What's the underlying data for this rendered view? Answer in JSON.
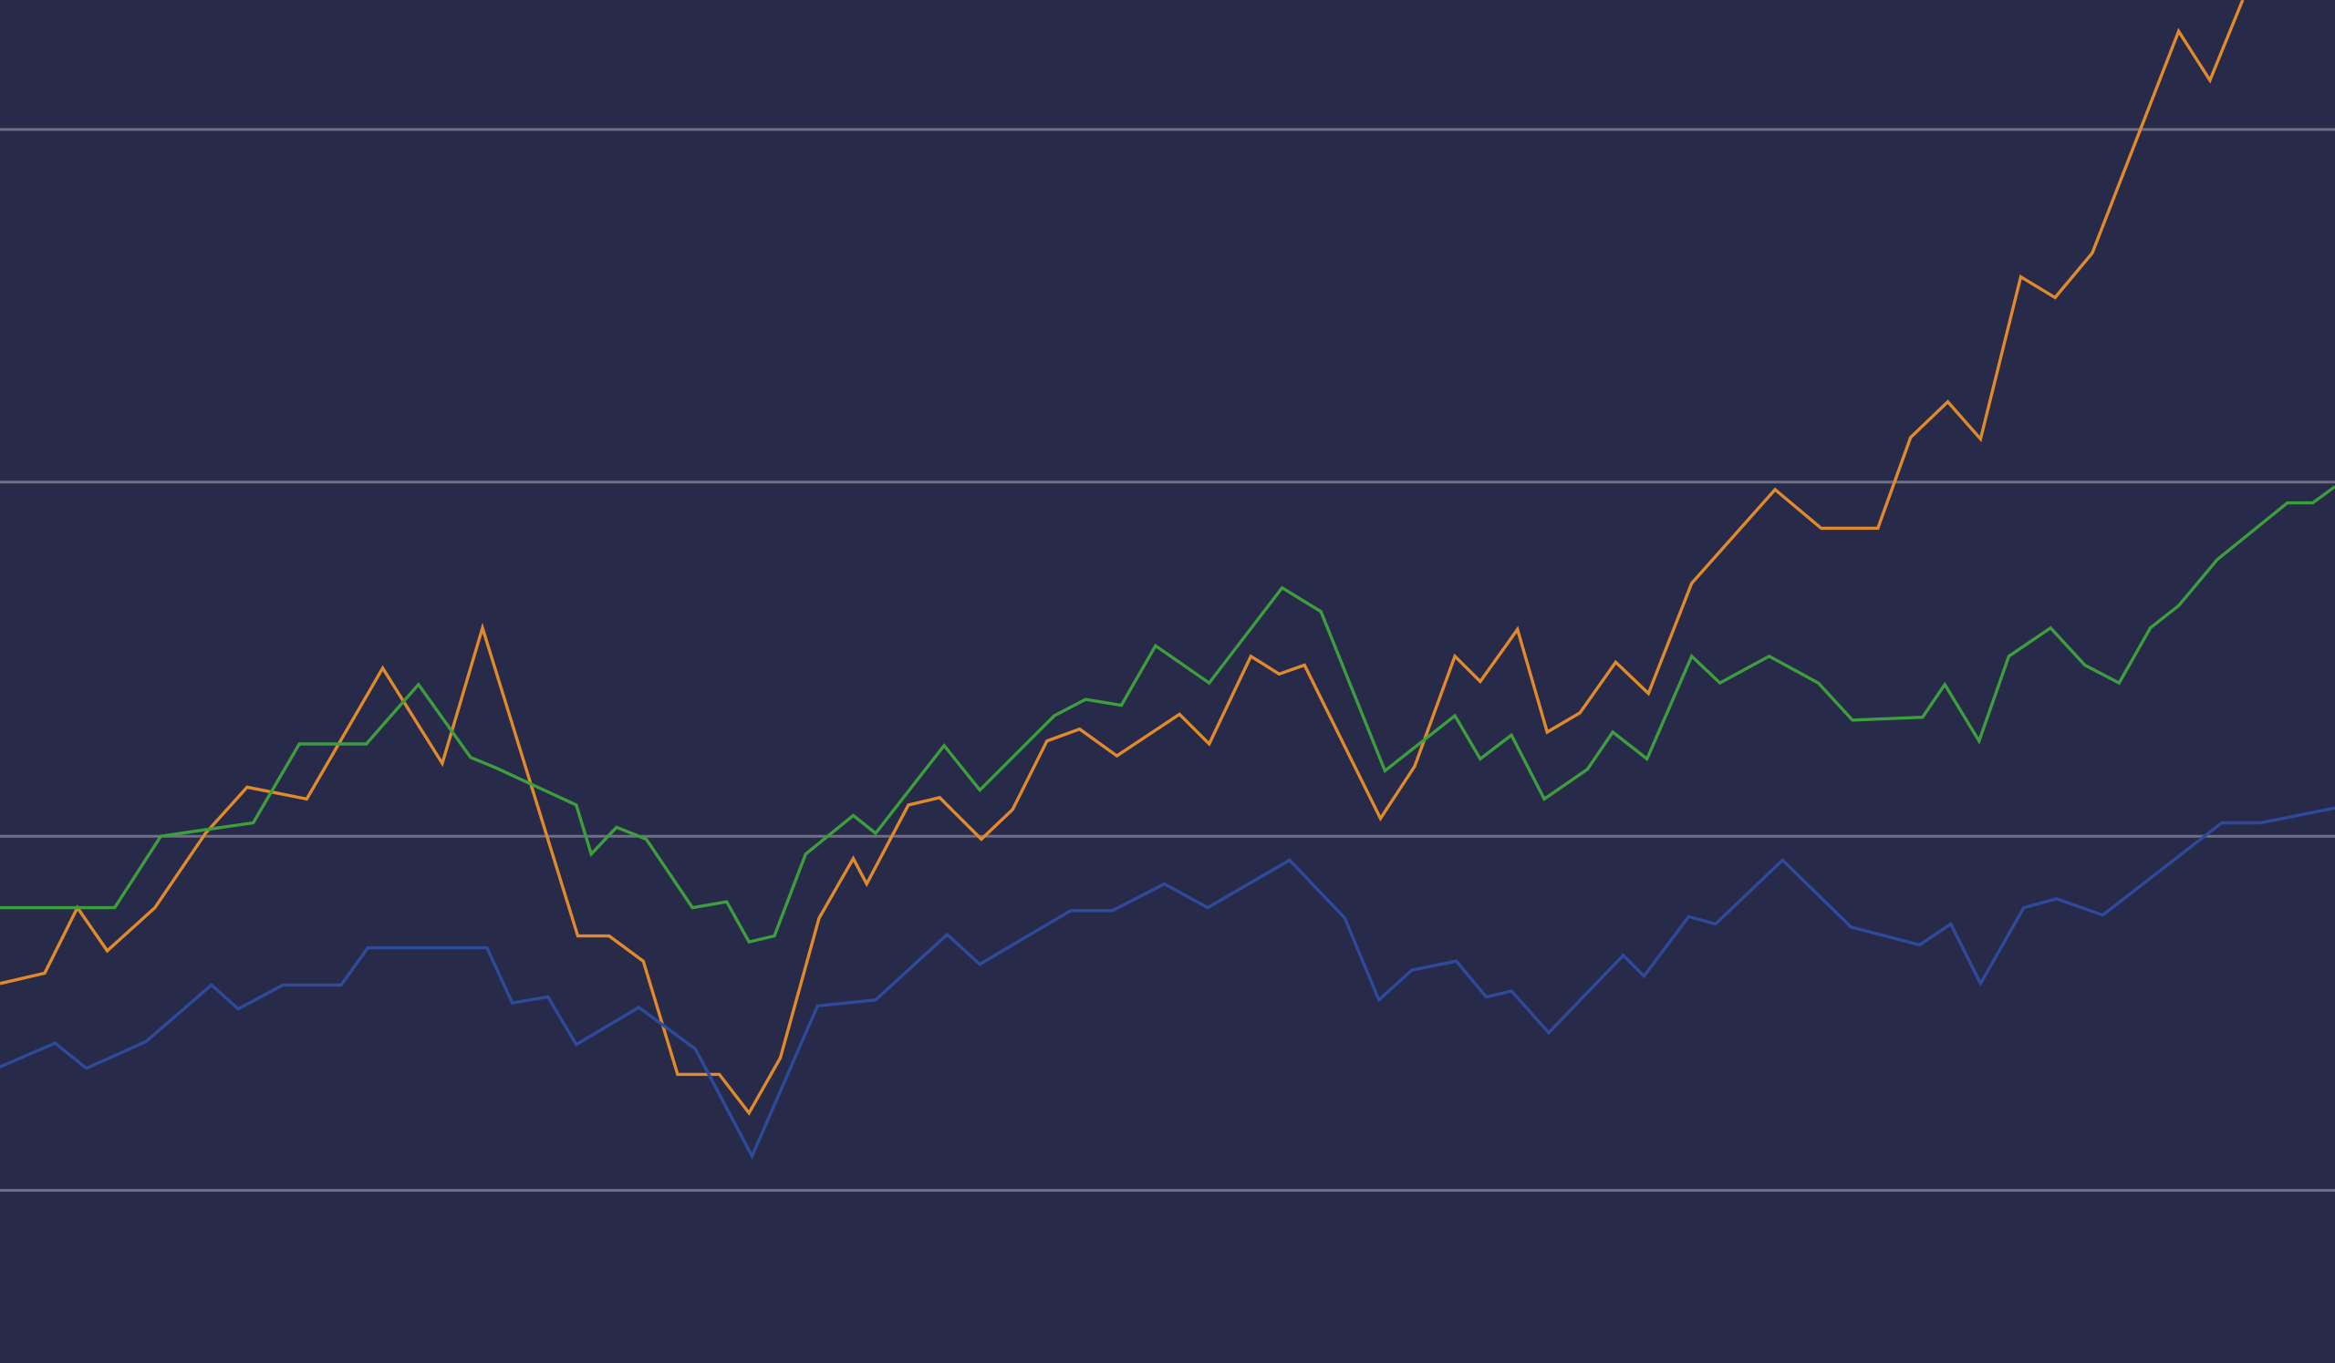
{
  "chart_data": {
    "type": "line",
    "xlim": [
      0,
      1568
    ],
    "ylim": [
      -116,
      800
    ],
    "yticks": [
      0,
      238,
      476,
      713
    ],
    "grid": true,
    "background": "#282a4a",
    "grid_color": "#6e6f85",
    "series": [
      {
        "color": "#e08a2a",
        "x": [
          0,
          30,
          52,
          72,
          104,
          138,
          166,
          206,
          257,
          297,
          324,
          388,
          409,
          432,
          455,
          483,
          503,
          524,
          550,
          573,
          582,
          610,
          631,
          659,
          680,
          703,
          725,
          750,
          792,
          812,
          840,
          859,
          876,
          927,
          950,
          977,
          994,
          1019,
          1039,
          1061,
          1085,
          1107,
          1136,
          1192,
          1223,
          1261,
          1283,
          1308,
          1330,
          1357,
          1380,
          1405,
          1463,
          1484,
          1506
        ],
        "values": [
          139,
          146,
          190,
          161,
          190,
          240,
          271,
          263,
          351,
          287,
          378,
          171,
          171,
          154,
          78,
          78,
          52,
          89,
          183,
          223,
          206,
          259,
          264,
          236,
          256,
          302,
          310,
          292,
          320,
          300,
          359,
          347,
          353,
          250,
          285,
          359,
          342,
          377,
          308,
          321,
          355,
          334,
          408,
          471,
          445,
          445,
          506,
          530,
          505,
          614,
          600,
          630,
          779,
          746,
          800
        ]
      },
      {
        "color": "#3c9e3c",
        "x": [
          0,
          77,
          108,
          170,
          201,
          246,
          281,
          316,
          333,
          387,
          397,
          414,
          434,
          465,
          488,
          503,
          520,
          541,
          573,
          588,
          634,
          658,
          708,
          729,
          753,
          776,
          812,
          861,
          887,
          930,
          977,
          994,
          1015,
          1037,
          1066,
          1083,
          1106,
          1136,
          1155,
          1188,
          1221,
          1244,
          1291,
          1306,
          1329,
          1349,
          1377,
          1400,
          1423,
          1444,
          1463,
          1489,
          1536,
          1553,
          1568
        ],
        "values": [
          190,
          190,
          238,
          247,
          300,
          300,
          340,
          291,
          284,
          259,
          226,
          244,
          236,
          190,
          194,
          167,
          171,
          226,
          252,
          240,
          299,
          269,
          319,
          330,
          326,
          366,
          341,
          405,
          389,
          282,
          319,
          290,
          306,
          263,
          283,
          308,
          290,
          359,
          341,
          359,
          341,
          316,
          318,
          340,
          302,
          359,
          378,
          353,
          341,
          378,
          393,
          424,
          462,
          462,
          473
        ]
      },
      {
        "color": "#2e4a9a",
        "x": [
          0,
          37,
          58,
          98,
          142,
          160,
          190,
          229,
          247,
          327,
          344,
          368,
          387,
          429,
          467,
          505,
          549,
          588,
          636,
          658,
          719,
          747,
          782,
          811,
          866,
          903,
          926,
          948,
          978,
          998,
          1015,
          1040,
          1090,
          1104,
          1134,
          1152,
          1197,
          1243,
          1289,
          1310,
          1330,
          1359,
          1381,
          1412,
          1492,
          1518,
          1568
        ],
        "values": [
          83,
          99,
          82,
          100,
          138,
          122,
          138,
          138,
          163,
          163,
          126,
          130,
          98,
          123,
          95,
          23,
          124,
          128,
          172,
          152,
          188,
          188,
          206,
          190,
          222,
          183,
          128,
          148,
          154,
          130,
          134,
          106,
          158,
          144,
          184,
          179,
          222,
          177,
          165,
          179,
          139,
          190,
          196,
          185,
          247,
          247,
          257
        ]
      }
    ]
  }
}
